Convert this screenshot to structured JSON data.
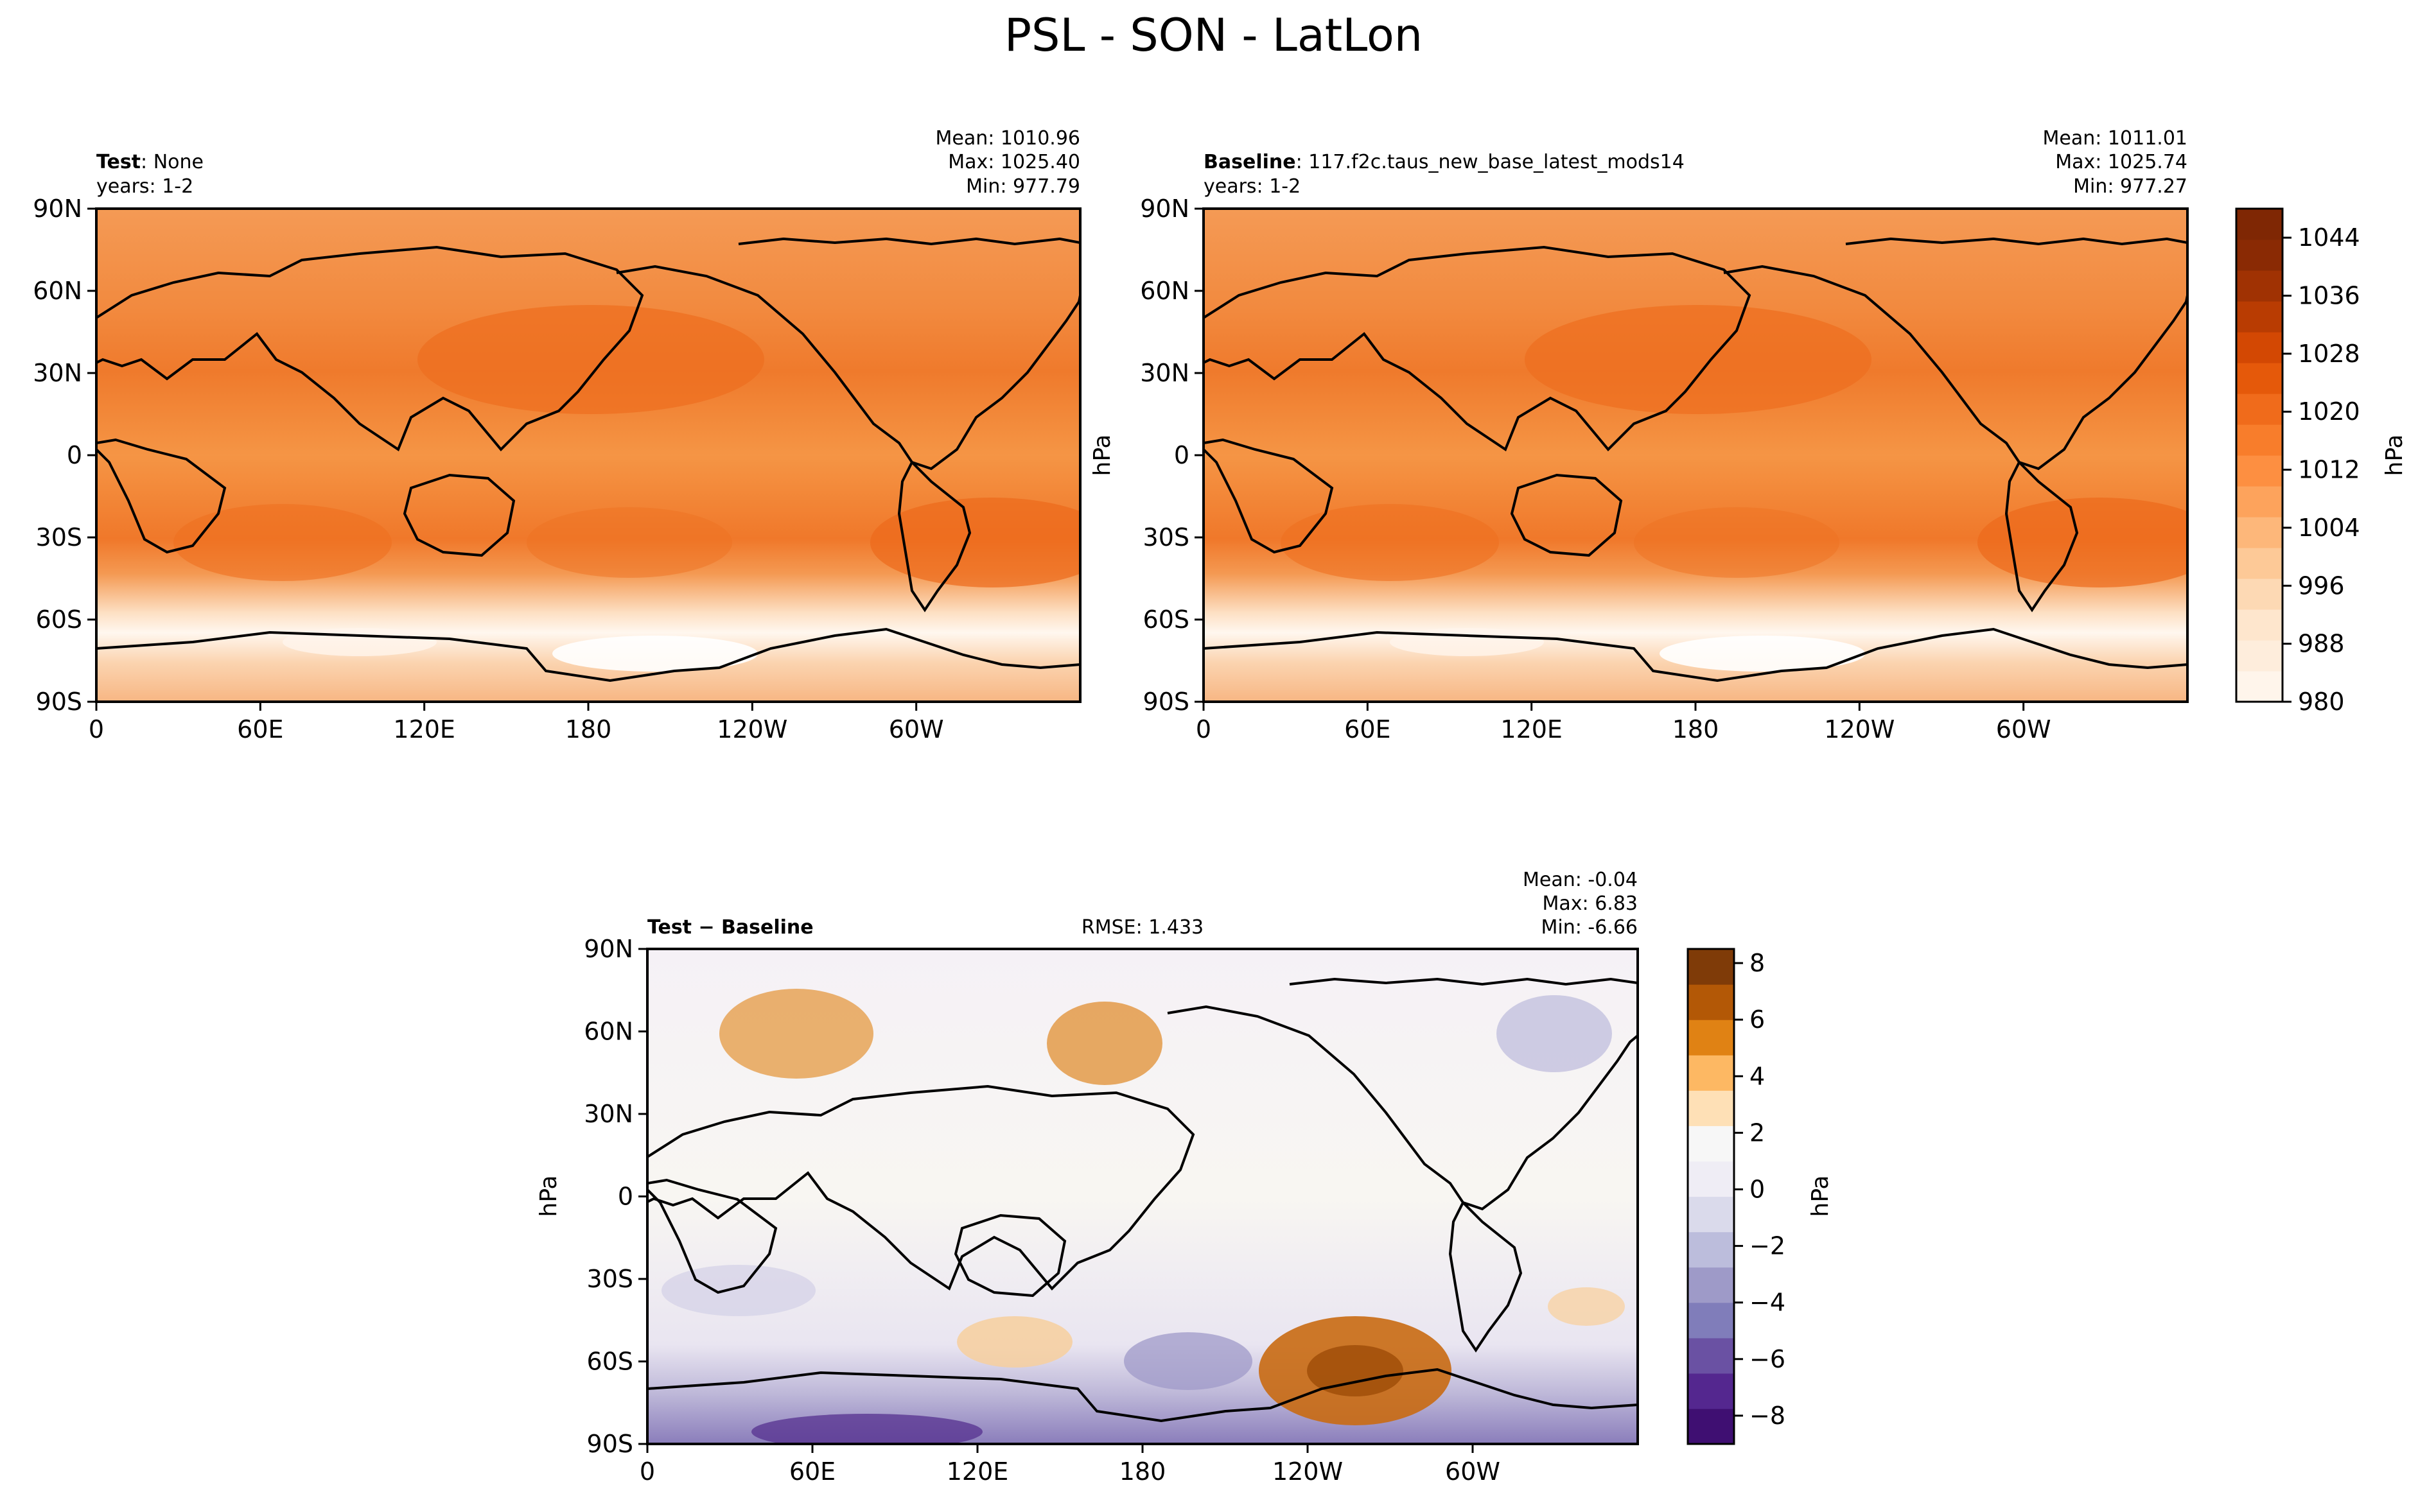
{
  "figure": {
    "title": "PSL - SON - LatLon"
  },
  "chart_data": [
    {
      "type": "heatmap",
      "id": "test",
      "label_bold": "Test",
      "label_sep": ": ",
      "label_value": "None",
      "years": "years: 1-2",
      "stats": [
        "Mean: 1010.96",
        "Max: 1025.40",
        "Min: 977.79"
      ],
      "xticks": [
        "0",
        "60E",
        "120E",
        "180",
        "120W",
        "60W"
      ],
      "yticks": [
        "90N",
        "60N",
        "30N",
        "0",
        "30S",
        "60S",
        "90S"
      ],
      "xlim": [
        0,
        360
      ],
      "ylim": [
        -90,
        90
      ],
      "ylabel": "",
      "mean": 1010.96,
      "max": 1025.4,
      "min": 977.79
    },
    {
      "type": "heatmap",
      "id": "baseline",
      "label_bold": "Baseline",
      "label_sep": ": ",
      "label_value": "117.f2c.taus_new_base_latest_mods14",
      "years": "years: 1-2",
      "stats": [
        "Mean: 1011.01",
        "Max: 1025.74",
        "Min: 977.27"
      ],
      "xticks": [
        "0",
        "60E",
        "120E",
        "180",
        "120W",
        "60W"
      ],
      "yticks": [
        "90N",
        "60N",
        "30N",
        "0",
        "30S",
        "60S",
        "90S"
      ],
      "xlim": [
        0,
        360
      ],
      "ylim": [
        -90,
        90
      ],
      "ylabel": "hPa",
      "mean": 1011.01,
      "max": 1025.74,
      "min": 977.27,
      "colorbar": {
        "label": "hPa",
        "range": [
          980,
          1048
        ],
        "ticks": [
          "1044",
          "1036",
          "1028",
          "1020",
          "1012",
          "1004",
          "996",
          "988",
          "980"
        ],
        "colors": [
          "#fff5eb",
          "#feeddc",
          "#fee6cd",
          "#fdd9b4",
          "#fdc997",
          "#fdb77a",
          "#fda35c",
          "#fd8f41",
          "#f87d2b",
          "#f06b1b",
          "#e5590a",
          "#d34803",
          "#b93c02",
          "#a03203",
          "#8a2a04",
          "#7f2704"
        ]
      }
    },
    {
      "type": "heatmap",
      "id": "diff",
      "label_bold": "Test − Baseline",
      "rmse": "RMSE: 1.433",
      "stats": [
        "Mean: -0.04",
        "Max:  6.83",
        "Min: -6.66"
      ],
      "xticks": [
        "0",
        "60E",
        "120E",
        "180",
        "120W",
        "60W"
      ],
      "yticks": [
        "90N",
        "60N",
        "30N",
        "0",
        "30S",
        "60S",
        "90S"
      ],
      "xlim": [
        0,
        360
      ],
      "ylim": [
        -90,
        90
      ],
      "ylabel": "hPa",
      "mean": -0.04,
      "max": 6.83,
      "min": -6.66,
      "colorbar": {
        "label": "hPa",
        "range": [
          -9,
          8.5
        ],
        "ticks": [
          "8",
          "6",
          "4",
          "2",
          "0",
          "−2",
          "−4",
          "−6",
          "−8"
        ],
        "colors": [
          "#3f0f72",
          "#54278f",
          "#6a51a3",
          "#807dba",
          "#9e9ac8",
          "#bcbddc",
          "#dadaeb",
          "#efedf5",
          "#f7f7f7",
          "#fee0b6",
          "#fdb863",
          "#e08214",
          "#b35806",
          "#7f3b08"
        ]
      }
    }
  ]
}
